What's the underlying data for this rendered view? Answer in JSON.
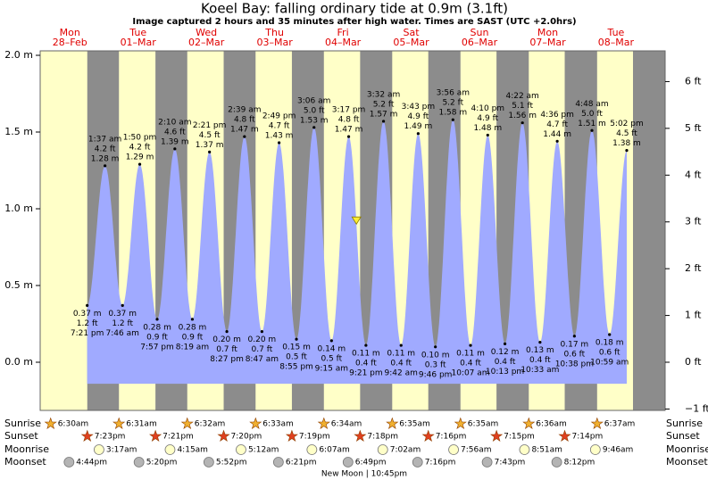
{
  "chart_data": {
    "type": "area",
    "title": "Koeel Bay: falling  ordinary tide at 0.9m (3.1ft)",
    "subtitle": "Image captured 2 hours and 35 minutes after high water. Times are SAST (UTC +2.0hrs)",
    "ylim": [
      -0.314,
      2.029
    ],
    "yticks": [
      {
        "value": 0,
        "label": "0.0 m"
      },
      {
        "value": 0.5,
        "label": "0.5 m"
      },
      {
        "value": 1,
        "label": "1.0 m"
      },
      {
        "value": 1.5,
        "label": "1.5 m"
      },
      {
        "value": 2,
        "label": "2.0 m"
      }
    ],
    "y2lim": [
      -1.03,
      6.657
    ],
    "y2ticks": [
      {
        "value": -1,
        "label": "−1 ft"
      },
      {
        "value": 0,
        "label": "0 ft"
      },
      {
        "value": 1,
        "label": "1 ft"
      },
      {
        "value": 2,
        "label": "2 ft"
      },
      {
        "value": 3,
        "label": "3 ft"
      },
      {
        "value": 4,
        "label": "4 ft"
      },
      {
        "value": 5,
        "label": "5 ft"
      },
      {
        "value": 6,
        "label": "6 ft"
      }
    ],
    "color": "#a0aaff",
    "day_color": "#ffffc8",
    "night_color": "#8c8c8c",
    "row_labels": [
      "Sunrise",
      "Sunset",
      "Moonrise",
      "Moonset"
    ],
    "marker": {
      "day": "Fri",
      "value": 0.9
    },
    "moon_phase": "New Moon | 10:45pm",
    "days": [
      {
        "name": "Mon",
        "date": "28–Feb",
        "sunrise": "6:30am",
        "sunset": "7:23pm",
        "moonset": "4:44pm",
        "tides": [
          {
            "time": "7:21 pm",
            "m": 0.37,
            "m_label": "0.37 m",
            "ft_label": "1.2 ft"
          }
        ]
      },
      {
        "name": "Tue",
        "date": "01–Mar",
        "sunrise": "6:31am",
        "sunset": "7:21pm",
        "moonrise": "3:17am",
        "moonset": "5:20pm",
        "tides": [
          {
            "time": "1:37 am",
            "m": 1.28,
            "m_label": "1.28 m",
            "ft_label": "4.2 ft"
          },
          {
            "time": "7:46 am",
            "m": 0.37,
            "m_label": "0.37 m",
            "ft_label": "1.2 ft"
          },
          {
            "time": "1:50 pm",
            "m": 1.29,
            "m_label": "1.29 m",
            "ft_label": "4.2 ft"
          },
          {
            "time": "7:57 pm",
            "m": 0.28,
            "m_label": "0.28 m",
            "ft_label": "0.9 ft"
          }
        ]
      },
      {
        "name": "Wed",
        "date": "02–Mar",
        "sunrise": "6:32am",
        "sunset": "7:20pm",
        "moonrise": "4:15am",
        "moonset": "5:52pm",
        "tides": [
          {
            "time": "2:10 am",
            "m": 1.39,
            "m_label": "1.39 m",
            "ft_label": "4.6 ft"
          },
          {
            "time": "8:19 am",
            "m": 0.28,
            "m_label": "0.28 m",
            "ft_label": "0.9 ft"
          },
          {
            "time": "2:21 pm",
            "m": 1.37,
            "m_label": "1.37 m",
            "ft_label": "4.5 ft"
          },
          {
            "time": "8:27 pm",
            "m": 0.2,
            "m_label": "0.20 m",
            "ft_label": "0.7 ft"
          }
        ]
      },
      {
        "name": "Thu",
        "date": "03–Mar",
        "sunrise": "6:33am",
        "sunset": "7:19pm",
        "moonrise": "5:12am",
        "moonset": "6:21pm",
        "tides": [
          {
            "time": "2:39 am",
            "m": 1.47,
            "m_label": "1.47 m",
            "ft_label": "4.8 ft"
          },
          {
            "time": "8:47 am",
            "m": 0.2,
            "m_label": "0.20 m",
            "ft_label": "0.7 ft"
          },
          {
            "time": "2:49 pm",
            "m": 1.43,
            "m_label": "1.43 m",
            "ft_label": "4.7 ft"
          },
          {
            "time": "8:55 pm",
            "m": 0.15,
            "m_label": "0.15 m",
            "ft_label": "0.5 ft"
          }
        ]
      },
      {
        "name": "Fri",
        "date": "04–Mar",
        "sunrise": "6:34am",
        "sunset": "7:18pm",
        "moonrise": "6:07am",
        "moonset": "6:49pm",
        "tides": [
          {
            "time": "3:06 am",
            "m": 1.53,
            "m_label": "1.53 m",
            "ft_label": "5.0 ft"
          },
          {
            "time": "9:15 am",
            "m": 0.14,
            "m_label": "0.14 m",
            "ft_label": "0.5 ft"
          },
          {
            "time": "3:17 pm",
            "m": 1.47,
            "m_label": "1.47 m",
            "ft_label": "4.8 ft"
          },
          {
            "time": "9:21 pm",
            "m": 0.11,
            "m_label": "0.11 m",
            "ft_label": "0.4 ft"
          }
        ]
      },
      {
        "name": "Sat",
        "date": "05–Mar",
        "sunrise": "6:35am",
        "sunset": "7:16pm",
        "moonrise": "7:02am",
        "moonset": "7:16pm",
        "tides": [
          {
            "time": "3:32 am",
            "m": 1.57,
            "m_label": "1.57 m",
            "ft_label": "5.2 ft"
          },
          {
            "time": "9:42 am",
            "m": 0.11,
            "m_label": "0.11 m",
            "ft_label": "0.4 ft"
          },
          {
            "time": "3:43 pm",
            "m": 1.49,
            "m_label": "1.49 m",
            "ft_label": "4.9 ft"
          },
          {
            "time": "9:46 pm",
            "m": 0.1,
            "m_label": "0.10 m",
            "ft_label": "0.3 ft"
          }
        ]
      },
      {
        "name": "Sun",
        "date": "06–Mar",
        "sunrise": "6:35am",
        "sunset": "7:15pm",
        "moonrise": "7:56am",
        "moonset": "7:43pm",
        "tides": [
          {
            "time": "3:56 am",
            "m": 1.58,
            "m_label": "1.58 m",
            "ft_label": "5.2 ft"
          },
          {
            "time": "10:07 am",
            "m": 0.11,
            "m_label": "0.11 m",
            "ft_label": "0.4 ft"
          },
          {
            "time": "4:10 pm",
            "m": 1.48,
            "m_label": "1.48 m",
            "ft_label": "4.9 ft"
          },
          {
            "time": "10:13 pm",
            "m": 0.12,
            "m_label": "0.12 m",
            "ft_label": "0.4 ft"
          }
        ]
      },
      {
        "name": "Mon",
        "date": "07–Mar",
        "sunrise": "6:36am",
        "sunset": "7:14pm",
        "moonrise": "8:51am",
        "moonset": "8:12pm",
        "tides": [
          {
            "time": "4:22 am",
            "m": 1.56,
            "m_label": "1.56 m",
            "ft_label": "5.1 ft"
          },
          {
            "time": "10:33 am",
            "m": 0.13,
            "m_label": "0.13 m",
            "ft_label": "0.4 ft"
          },
          {
            "time": "4:36 pm",
            "m": 1.44,
            "m_label": "1.44 m",
            "ft_label": "4.7 ft"
          },
          {
            "time": "10:38 pm",
            "m": 0.17,
            "m_label": "0.17 m",
            "ft_label": "0.6 ft"
          }
        ]
      },
      {
        "name": "Tue",
        "date": "08–Mar",
        "sunrise": "6:37am",
        "moonrise": "9:46am",
        "tides": [
          {
            "time": "4:48 am",
            "m": 1.51,
            "m_label": "1.51 m",
            "ft_label": "5.0 ft"
          },
          {
            "time": "10:59 am",
            "m": 0.18,
            "m_label": "0.18 m",
            "ft_label": "0.6 ft"
          },
          {
            "time": "5:02 pm",
            "m": 1.38,
            "m_label": "1.38 m",
            "ft_label": "4.5 ft"
          }
        ]
      }
    ]
  }
}
